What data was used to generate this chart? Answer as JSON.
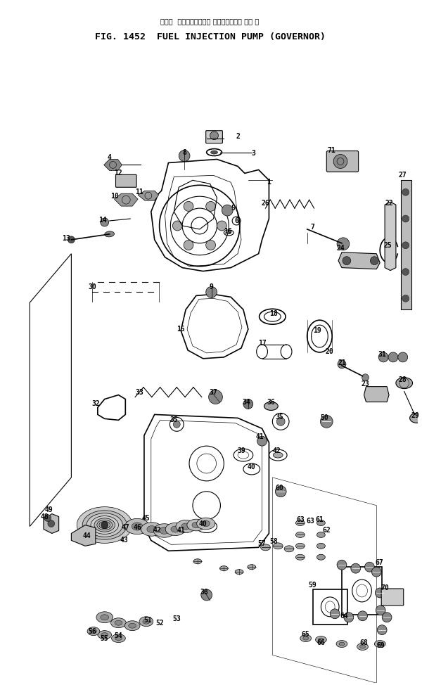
{
  "title_japanese": "フェル  インジェクション ポンプ　　ガ　 バ　 ナ",
  "title_english": "FIG. 1452  FUEL INJECTION PUMP (GOVERNOR)",
  "bg_color": "#ffffff",
  "line_color": "#000000",
  "fig_width": 6.0,
  "fig_height": 9.74,
  "dpi": 100
}
